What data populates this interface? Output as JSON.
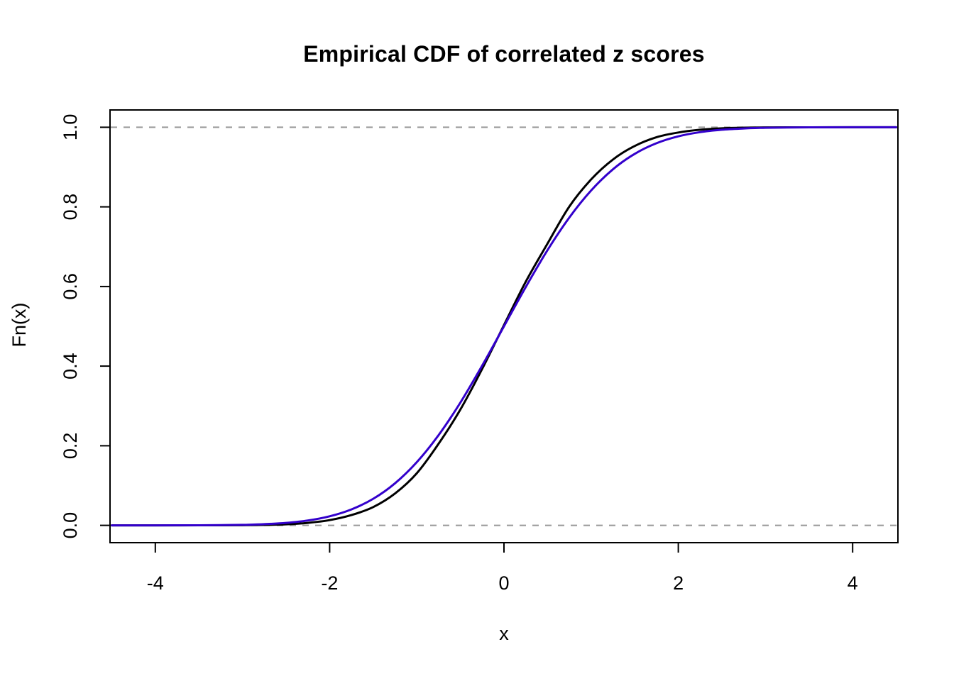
{
  "page": {
    "background": "#ffffff"
  },
  "chart_data": {
    "type": "line",
    "title": "Empirical CDF of correlated z scores",
    "xlabel": "x",
    "ylabel": "Fn(x)",
    "xlim": [
      -4.52,
      4.52
    ],
    "ylim": [
      -0.0435,
      1.0435
    ],
    "x_ticks": [
      -4,
      -2,
      0,
      2,
      4
    ],
    "x_tick_labels": [
      "-4",
      "-2",
      "0",
      "2",
      "4"
    ],
    "y_ticks": [
      0,
      0.2,
      0.4,
      0.6,
      0.8,
      1
    ],
    "y_tick_labels": [
      "0.0",
      "0.2",
      "0.4",
      "0.6",
      "0.8",
      "1.0"
    ],
    "grid": false,
    "legend": "none",
    "box": true,
    "reference_lines": [
      {
        "axis": "y",
        "value": 0,
        "style": "dashed",
        "color": "#999999"
      },
      {
        "axis": "y",
        "value": 1,
        "style": "dashed",
        "color": "#999999"
      }
    ],
    "x": [
      -4.5,
      -4.25,
      -4,
      -3.75,
      -3.5,
      -3.25,
      -3,
      -2.75,
      -2.5,
      -2.25,
      -2,
      -1.75,
      -1.5,
      -1.25,
      -1,
      -0.75,
      -0.5,
      -0.25,
      0,
      0.25,
      0.5,
      0.75,
      1,
      1.25,
      1.5,
      1.75,
      2,
      2.25,
      2.5,
      2.75,
      3,
      3.25,
      3.5,
      3.75,
      4,
      4.25,
      4.5
    ],
    "series": [
      {
        "name": "empirical-cdf-correlated-z",
        "color": "#000000",
        "values": [
          0,
          0,
          0,
          0,
          0.0001,
          0.0002,
          0.0004,
          0.0011,
          0.0027,
          0.0062,
          0.0131,
          0.0259,
          0.046,
          0.08,
          0.131,
          0.205,
          0.291,
          0.393,
          0.503,
          0.612,
          0.708,
          0.801,
          0.869,
          0.919,
          0.953,
          0.975,
          0.9869,
          0.9938,
          0.9973,
          0.9989,
          0.9996,
          0.9998,
          0.9999,
          1,
          1,
          1,
          1
        ]
      },
      {
        "name": "standard-normal-cdf",
        "color": "#3300CC",
        "values": [
          0,
          0,
          0,
          0.0001,
          0.0002,
          0.0006,
          0.0013,
          0.003,
          0.0062,
          0.0122,
          0.0228,
          0.0401,
          0.0668,
          0.1056,
          0.1587,
          0.2266,
          0.3085,
          0.4013,
          0.5,
          0.5987,
          0.6915,
          0.7734,
          0.8413,
          0.8944,
          0.9332,
          0.9599,
          0.9772,
          0.9878,
          0.9938,
          0.997,
          0.9987,
          0.9994,
          0.9998,
          0.9999,
          1,
          1,
          1
        ]
      }
    ]
  }
}
